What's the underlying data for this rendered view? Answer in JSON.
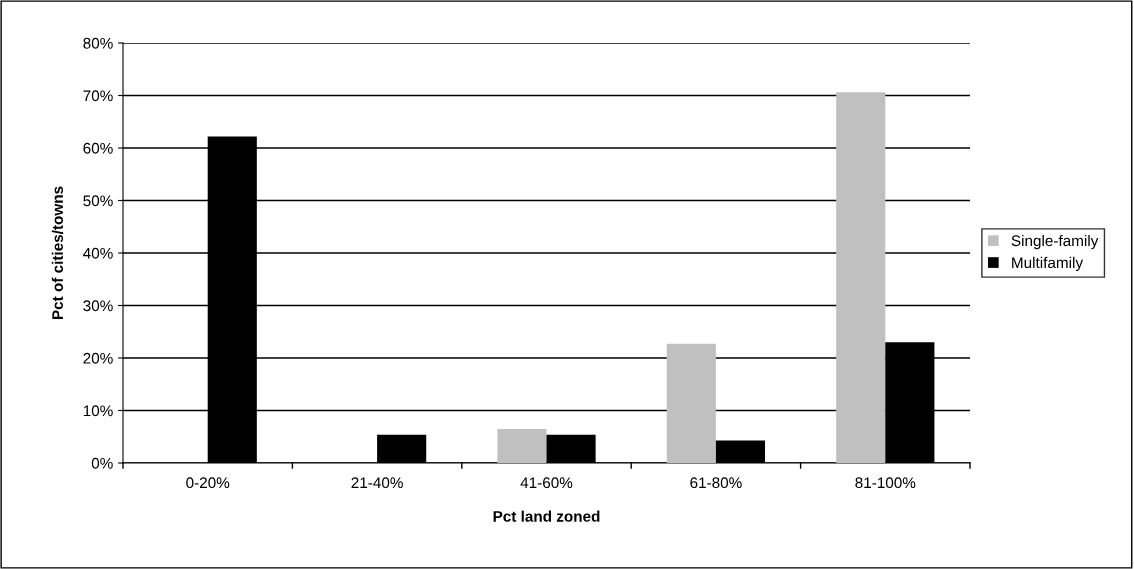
{
  "chart_data": {
    "type": "bar",
    "xlabel": "Pct land zoned",
    "ylabel": "Pct of cities/towns",
    "categories": [
      "0-20%",
      "21-40%",
      "41-60%",
      "61-80%",
      "81-100%"
    ],
    "series": [
      {
        "name": "Single-family",
        "color": "#c0c0c0",
        "values": [
          0,
          0,
          6.5,
          22.7,
          70.6
        ]
      },
      {
        "name": "Multifamily",
        "color": "#000000",
        "values": [
          62.2,
          5.4,
          5.4,
          4.3,
          23.0
        ]
      }
    ],
    "ylim": [
      0,
      80
    ],
    "yticks": [
      {
        "value": 0,
        "label": "0%"
      },
      {
        "value": 10,
        "label": "10%"
      },
      {
        "value": 20,
        "label": "20%"
      },
      {
        "value": 30,
        "label": "30%"
      },
      {
        "value": 40,
        "label": "40%"
      },
      {
        "value": 50,
        "label": "50%"
      },
      {
        "value": 60,
        "label": "60%"
      },
      {
        "value": 70,
        "label": "70%"
      },
      {
        "value": 80,
        "label": "80%"
      }
    ],
    "grid": "y",
    "legend": "right"
  }
}
